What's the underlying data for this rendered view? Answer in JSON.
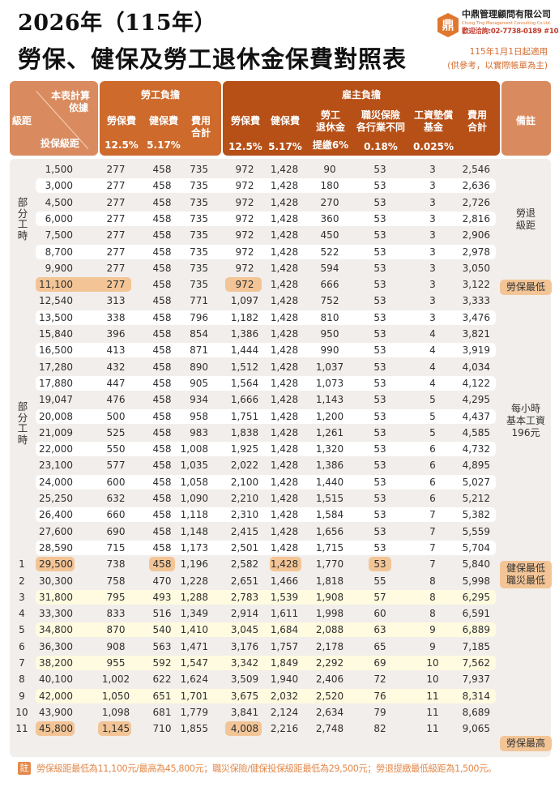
{
  "header": {
    "title_line1": "2026年（115年）",
    "title_line2": "勞保、健保及勞工退休金保費對照表",
    "effective": "115年1月1日起適用",
    "reference_note": "(供參考，以實際帳單為主)"
  },
  "brand": {
    "logo_glyph": "鼎",
    "company": "中鼎管理顧問有限公司",
    "company_en": "Chung Ting Management Consulting Co.Ltd.",
    "phone": "歡迎洽詢:02-7738-0189 #103"
  },
  "colors": {
    "accent": "#d36b2e",
    "header_grade": "#d98b5f",
    "header_labor": "#cd6a2c",
    "header_employer": "#b65017",
    "highlight": "#f3c596",
    "stripe_white": "#ffffff",
    "stripe_yellow": "#fffbe0",
    "body_bg": "#f1eeeb"
  },
  "columns": {
    "grade_corner_top": "本表計算",
    "grade_corner_top2": "依據",
    "grade_left": "級距",
    "grade_bottom": "投保級距",
    "labor_group": "勞工負擔",
    "employer_group": "雇主負擔",
    "remark": "備註",
    "labor": [
      {
        "label": "勞保費",
        "rate": "12.5%"
      },
      {
        "label": "健保費",
        "rate": "5.17%"
      },
      {
        "label1": "費用",
        "label2": "合計"
      }
    ],
    "employer": [
      {
        "label": "勞保費",
        "rate": "12.5%"
      },
      {
        "label": "健保費",
        "rate": "5.17%"
      },
      {
        "label1": "勞工",
        "label2": "退休金",
        "rate": "提繳6%"
      },
      {
        "label1": "職災保險",
        "label2": "各行業不同",
        "rate": "0.18%"
      },
      {
        "label1": "工資墊償",
        "label2": "基金",
        "rate": "0.025%"
      },
      {
        "label1": "費用",
        "label2": "合計"
      }
    ]
  },
  "side_labels": {
    "part_time_1": "部分工時",
    "part_time_2": "部分工時"
  },
  "remarks": {
    "pension_grade": [
      "勞退",
      "級距"
    ],
    "labor_min": "勞保最低",
    "hourly_wage": [
      "每小時",
      "基本工資",
      "196元"
    ],
    "health_min": [
      "健保最低",
      "職災最低"
    ],
    "labor_max": "勞保最高"
  },
  "table": {
    "rows": [
      {
        "cells": [
          "",
          "1,500",
          "277",
          "458",
          "735",
          "972",
          "1,428",
          "90",
          "53",
          "3",
          "2,546"
        ]
      },
      {
        "stripe": "white",
        "cells": [
          "",
          "3,000",
          "277",
          "458",
          "735",
          "972",
          "1,428",
          "180",
          "53",
          "3",
          "2,636"
        ]
      },
      {
        "cells": [
          "",
          "4,500",
          "277",
          "458",
          "735",
          "972",
          "1,428",
          "270",
          "53",
          "3",
          "2,726"
        ]
      },
      {
        "stripe": "white",
        "cells": [
          "",
          "6,000",
          "277",
          "458",
          "735",
          "972",
          "1,428",
          "360",
          "53",
          "3",
          "2,816"
        ]
      },
      {
        "cells": [
          "",
          "7,500",
          "277",
          "458",
          "735",
          "972",
          "1,428",
          "450",
          "53",
          "3",
          "2,906"
        ]
      },
      {
        "stripe": "white",
        "cells": [
          "",
          "8,700",
          "277",
          "458",
          "735",
          "972",
          "1,428",
          "522",
          "53",
          "3",
          "2,978"
        ]
      },
      {
        "cells": [
          "",
          "9,900",
          "277",
          "458",
          "735",
          "972",
          "1,428",
          "594",
          "53",
          "3",
          "3,050"
        ]
      },
      {
        "highlights": [
          [
            1,
            2
          ],
          [
            5,
            5
          ]
        ],
        "cells": [
          "",
          "11,100",
          "277",
          "458",
          "735",
          "972",
          "1,428",
          "666",
          "53",
          "3",
          "3,122"
        ]
      },
      {
        "cells": [
          "",
          "12,540",
          "313",
          "458",
          "771",
          "1,097",
          "1,428",
          "752",
          "53",
          "3",
          "3,333"
        ]
      },
      {
        "stripe": "white",
        "cells": [
          "",
          "13,500",
          "338",
          "458",
          "796",
          "1,182",
          "1,428",
          "810",
          "53",
          "3",
          "3,476"
        ]
      },
      {
        "cells": [
          "",
          "15,840",
          "396",
          "458",
          "854",
          "1,386",
          "1,428",
          "950",
          "53",
          "4",
          "3,821"
        ]
      },
      {
        "stripe": "white",
        "cells": [
          "",
          "16,500",
          "413",
          "458",
          "871",
          "1,444",
          "1,428",
          "990",
          "53",
          "4",
          "3,919"
        ]
      },
      {
        "cells": [
          "",
          "17,280",
          "432",
          "458",
          "890",
          "1,512",
          "1,428",
          "1,037",
          "53",
          "4",
          "4,034"
        ]
      },
      {
        "stripe": "white",
        "cells": [
          "",
          "17,880",
          "447",
          "458",
          "905",
          "1,564",
          "1,428",
          "1,073",
          "53",
          "4",
          "4,122"
        ]
      },
      {
        "cells": [
          "",
          "19,047",
          "476",
          "458",
          "934",
          "1,666",
          "1,428",
          "1,143",
          "53",
          "5",
          "4,295"
        ]
      },
      {
        "stripe": "white",
        "cells": [
          "",
          "20,008",
          "500",
          "458",
          "958",
          "1,751",
          "1,428",
          "1,200",
          "53",
          "5",
          "4,437"
        ]
      },
      {
        "cells": [
          "",
          "21,009",
          "525",
          "458",
          "983",
          "1,838",
          "1,428",
          "1,261",
          "53",
          "5",
          "4,585"
        ]
      },
      {
        "stripe": "white",
        "cells": [
          "",
          "22,000",
          "550",
          "458",
          "1,008",
          "1,925",
          "1,428",
          "1,320",
          "53",
          "6",
          "4,732"
        ]
      },
      {
        "cells": [
          "",
          "23,100",
          "577",
          "458",
          "1,035",
          "2,022",
          "1,428",
          "1,386",
          "53",
          "6",
          "4,895"
        ]
      },
      {
        "stripe": "white",
        "cells": [
          "",
          "24,000",
          "600",
          "458",
          "1,058",
          "2,100",
          "1,428",
          "1,440",
          "53",
          "6",
          "5,027"
        ]
      },
      {
        "cells": [
          "",
          "25,250",
          "632",
          "458",
          "1,090",
          "2,210",
          "1,428",
          "1,515",
          "53",
          "6",
          "5,212"
        ]
      },
      {
        "stripe": "white",
        "cells": [
          "",
          "26,400",
          "660",
          "458",
          "1,118",
          "2,310",
          "1,428",
          "1,584",
          "53",
          "7",
          "5,382"
        ]
      },
      {
        "cells": [
          "",
          "27,600",
          "690",
          "458",
          "1,148",
          "2,415",
          "1,428",
          "1,656",
          "53",
          "7",
          "5,559"
        ]
      },
      {
        "stripe": "white",
        "cells": [
          "",
          "28,590",
          "715",
          "458",
          "1,173",
          "2,501",
          "1,428",
          "1,715",
          "53",
          "7",
          "5,704"
        ]
      },
      {
        "highlights": [
          [
            1,
            1
          ],
          [
            3,
            3
          ],
          [
            6,
            6
          ],
          [
            8,
            8
          ]
        ],
        "cells": [
          "1",
          "29,500",
          "738",
          "458",
          "1,196",
          "2,582",
          "1,428",
          "1,770",
          "53",
          "7",
          "5,840"
        ]
      },
      {
        "cells": [
          "2",
          "30,300",
          "758",
          "470",
          "1,228",
          "2,651",
          "1,466",
          "1,818",
          "55",
          "8",
          "5,998"
        ]
      },
      {
        "stripe": "yellow",
        "cells": [
          "3",
          "31,800",
          "795",
          "493",
          "1,288",
          "2,783",
          "1,539",
          "1,908",
          "57",
          "8",
          "6,295"
        ]
      },
      {
        "cells": [
          "4",
          "33,300",
          "833",
          "516",
          "1,349",
          "2,914",
          "1,611",
          "1,998",
          "60",
          "8",
          "6,591"
        ]
      },
      {
        "stripe": "yellow",
        "cells": [
          "5",
          "34,800",
          "870",
          "540",
          "1,410",
          "3,045",
          "1,684",
          "2,088",
          "63",
          "9",
          "6,889"
        ]
      },
      {
        "cells": [
          "6",
          "36,300",
          "908",
          "563",
          "1,471",
          "3,176",
          "1,757",
          "2,178",
          "65",
          "9",
          "7,185"
        ]
      },
      {
        "stripe": "yellow",
        "cells": [
          "7",
          "38,200",
          "955",
          "592",
          "1,547",
          "3,342",
          "1,849",
          "2,292",
          "69",
          "10",
          "7,562"
        ]
      },
      {
        "cells": [
          "8",
          "40,100",
          "1,002",
          "622",
          "1,624",
          "3,509",
          "1,940",
          "2,406",
          "72",
          "10",
          "7,937"
        ]
      },
      {
        "stripe": "yellow",
        "cells": [
          "9",
          "42,000",
          "1,050",
          "651",
          "1,701",
          "3,675",
          "2,032",
          "2,520",
          "76",
          "11",
          "8,314"
        ]
      },
      {
        "cells": [
          "10",
          "43,900",
          "1,098",
          "681",
          "1,779",
          "3,841",
          "2,124",
          "2,634",
          "79",
          "11",
          "8,689"
        ]
      },
      {
        "highlights": [
          [
            1,
            1
          ],
          [
            2,
            2
          ],
          [
            5,
            5
          ]
        ],
        "cells": [
          "11",
          "45,800",
          "1,145",
          "710",
          "1,855",
          "4,008",
          "2,216",
          "2,748",
          "82",
          "11",
          "9,065"
        ]
      }
    ]
  },
  "footer": {
    "badge": "註",
    "note": "勞保級距最低為11,100元/最高為45,800元；職災保險/健保投保級距最低為29,500元；勞退提繳最低級距為1,500元。"
  }
}
